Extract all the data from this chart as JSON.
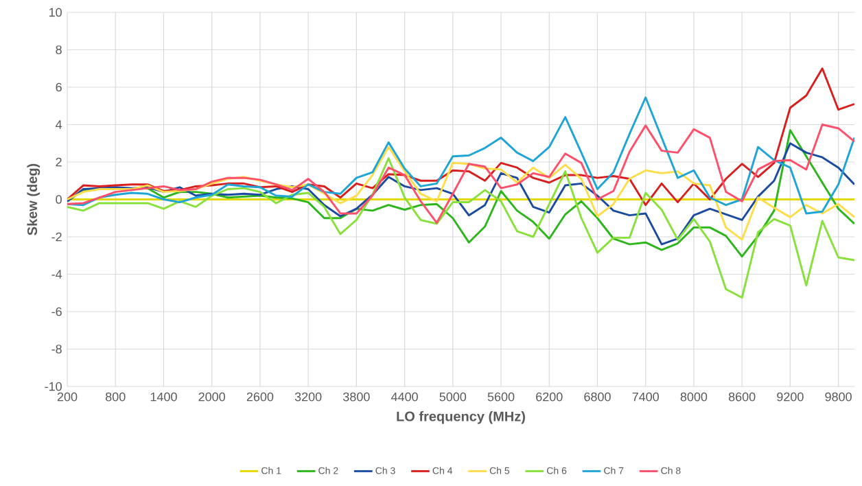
{
  "chart_data": {
    "type": "line",
    "xlabel": "LO frequency (MHz)",
    "ylabel": "Skew (deg)",
    "x": [
      200,
      400,
      600,
      800,
      1000,
      1200,
      1400,
      1600,
      1800,
      2000,
      2200,
      2400,
      2600,
      2800,
      3000,
      3200,
      3400,
      3600,
      3800,
      4000,
      4200,
      4400,
      4600,
      4800,
      5000,
      5200,
      5400,
      5600,
      5800,
      6000,
      6200,
      6400,
      6600,
      6800,
      7000,
      7200,
      7400,
      7600,
      7800,
      8000,
      8200,
      8400,
      8600,
      8800,
      9000,
      9200,
      9400,
      9600,
      9800,
      10000
    ],
    "xlim": [
      200,
      10000
    ],
    "xticks": [
      200,
      800,
      1400,
      2000,
      2600,
      3200,
      3800,
      4400,
      5000,
      5600,
      6200,
      6800,
      7400,
      8000,
      8600,
      9200,
      9800
    ],
    "ylim": [
      -10,
      10
    ],
    "yticks": [
      -10,
      -8,
      -6,
      -4,
      -2,
      0,
      2,
      4,
      6,
      8,
      10
    ],
    "grid": true,
    "legend": "bottom",
    "series": [
      {
        "name": "Ch 1",
        "color": "#e3d800",
        "values": [
          0,
          0,
          0,
          0,
          0,
          0,
          0,
          0,
          0,
          0,
          0,
          0,
          0,
          0,
          0,
          0,
          0,
          0,
          0,
          0,
          0,
          0,
          0,
          0,
          0,
          0,
          0,
          0,
          0,
          0,
          0,
          0,
          0,
          0,
          0,
          0,
          0,
          0,
          0,
          0,
          0,
          0,
          0,
          0,
          0,
          0,
          0,
          0,
          0,
          0
        ]
      },
      {
        "name": "Ch 2",
        "color": "#2db51c",
        "values": [
          -0.1,
          0.5,
          0.6,
          0.6,
          0.55,
          0.6,
          0.1,
          0.4,
          0.4,
          0.3,
          0.1,
          0.15,
          0.2,
          0.1,
          0.05,
          -0.15,
          -1.0,
          -1.0,
          -0.5,
          -0.6,
          -0.3,
          -0.55,
          -0.3,
          -0.25,
          -1.0,
          -2.3,
          -1.45,
          0.45,
          -0.6,
          -1.2,
          -2.1,
          -0.8,
          -0.1,
          -1.0,
          -2.1,
          -2.4,
          -2.3,
          -2.7,
          -2.35,
          -1.5,
          -1.5,
          -1.95,
          -3.05,
          -1.95,
          -0.6,
          3.7,
          2.3,
          0.9,
          -0.5,
          -1.3
        ]
      },
      {
        "name": "Ch 3",
        "color": "#1a4ba0",
        "values": [
          -0.1,
          0.55,
          0.6,
          0.65,
          0.6,
          0.65,
          0.4,
          0.65,
          0.2,
          0.3,
          0.25,
          0.3,
          0.25,
          0.55,
          0.7,
          0.55,
          -0.3,
          -0.9,
          -0.5,
          0.25,
          1.2,
          0.7,
          0.5,
          0.6,
          0.3,
          -0.85,
          -0.3,
          1.4,
          1.15,
          -0.4,
          -0.7,
          0.75,
          0.85,
          0.2,
          -0.6,
          -0.85,
          -0.75,
          -2.4,
          -2.1,
          -0.85,
          -0.5,
          -0.8,
          -1.1,
          0.15,
          1.0,
          3.0,
          2.5,
          2.25,
          1.7,
          0.8
        ]
      },
      {
        "name": "Ch 4",
        "color": "#d91e1e",
        "values": [
          0,
          0.75,
          0.7,
          0.75,
          0.8,
          0.8,
          0.45,
          0.5,
          0.7,
          0.75,
          0.85,
          0.85,
          0.65,
          0.7,
          0.4,
          0.8,
          0.7,
          0.1,
          0.85,
          0.6,
          1.35,
          1.3,
          1.0,
          1.0,
          1.55,
          1.5,
          1.0,
          1.95,
          1.7,
          1.15,
          0.9,
          1.3,
          1.3,
          1.15,
          1.25,
          1.1,
          -0.3,
          0.85,
          -0.15,
          0.85,
          0,
          1.1,
          1.9,
          1.2,
          1.95,
          4.9,
          5.55,
          7.0,
          4.8,
          5.1
        ]
      },
      {
        "name": "Ch 5",
        "color": "#ffdd4a",
        "values": [
          0,
          0.4,
          0.55,
          0.55,
          0.55,
          0.75,
          0.4,
          0.45,
          0.55,
          0.85,
          1.1,
          1.2,
          1.0,
          0.8,
          0.65,
          0.8,
          0.3,
          -0.2,
          0.2,
          1.3,
          2.8,
          1.5,
          0.3,
          -0.1,
          1.95,
          1.9,
          1.65,
          1.6,
          0.9,
          1.7,
          1.15,
          1.85,
          1.1,
          -0.9,
          -0.25,
          1.1,
          1.55,
          1.4,
          1.5,
          0.85,
          0.75,
          -1.5,
          -2.15,
          0.1,
          -0.45,
          -0.95,
          -0.3,
          -0.75,
          -0.25,
          -0.95
        ]
      },
      {
        "name": "Ch 6",
        "color": "#88e03a",
        "values": [
          -0.4,
          -0.6,
          -0.2,
          -0.2,
          -0.2,
          -0.2,
          -0.5,
          -0.1,
          -0.4,
          0.2,
          0.55,
          0.6,
          0.4,
          -0.2,
          0.25,
          0.35,
          -0.4,
          -1.85,
          -1.1,
          0.25,
          2.2,
          0.1,
          -1.1,
          -1.3,
          -0.15,
          -0.15,
          0.5,
          -0.1,
          -1.7,
          -2.0,
          -0.25,
          1.5,
          -1.0,
          -2.85,
          -2.05,
          -2.05,
          0.35,
          -0.55,
          -2.15,
          -1.05,
          -2.25,
          -4.8,
          -5.25,
          -1.75,
          -1.05,
          -1.4,
          -4.6,
          -1.15,
          -3.1,
          -3.25
        ]
      },
      {
        "name": "Ch 7",
        "color": "#1ea5d6",
        "values": [
          -0.25,
          -0.3,
          0.1,
          0.25,
          0.35,
          0.3,
          0.0,
          -0.15,
          0.1,
          0.25,
          0.8,
          0.7,
          0.65,
          0.2,
          0.15,
          0.8,
          0.4,
          0.3,
          1.15,
          1.45,
          3.05,
          1.65,
          0.7,
          0.85,
          2.3,
          2.35,
          2.75,
          3.3,
          2.5,
          2.05,
          2.8,
          4.4,
          2.5,
          0.55,
          1.45,
          3.5,
          5.45,
          3.3,
          1.15,
          1.55,
          0.1,
          -0.3,
          0.0,
          2.8,
          2.1,
          1.7,
          -0.75,
          -0.65,
          0.8,
          3.3
        ]
      },
      {
        "name": "Ch 8",
        "color": "#ff4f6b",
        "values": [
          -0.25,
          -0.2,
          0.1,
          0.4,
          0.5,
          0.6,
          0.7,
          0.5,
          0.55,
          0.95,
          1.15,
          1.15,
          1.05,
          0.8,
          0.5,
          1.1,
          0.4,
          -0.75,
          -0.75,
          0.2,
          1.7,
          1.3,
          -0.1,
          -1.25,
          0.3,
          1.9,
          1.75,
          0.6,
          0.8,
          1.4,
          1.2,
          2.45,
          1.95,
          0.0,
          0.45,
          2.55,
          3.95,
          2.6,
          2.5,
          3.75,
          3.3,
          0.4,
          -0.1,
          1.6,
          2.05,
          2.1,
          1.6,
          4.0,
          3.8,
          3.1
        ]
      }
    ]
  }
}
